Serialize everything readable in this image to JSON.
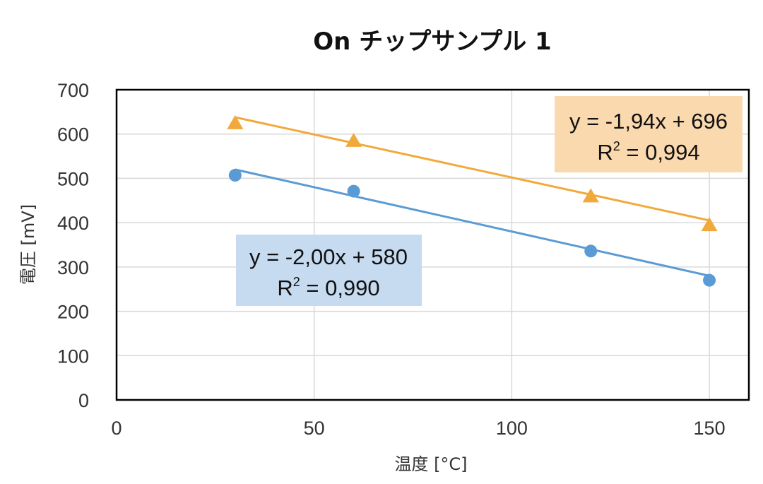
{
  "chart_data": {
    "type": "scatter",
    "title": "On チップサンプル 1",
    "xlabel": "温度 [°C]",
    "ylabel": "電圧 [mV]",
    "xlim": [
      0,
      160
    ],
    "ylim": [
      0,
      700
    ],
    "xticks": [
      "0",
      "50",
      "100",
      "150"
    ],
    "yticks": [
      "0",
      "100",
      "200",
      "300",
      "400",
      "500",
      "600",
      "700"
    ],
    "grid": true,
    "series": [
      {
        "marker": "triangle",
        "color": "#F2A93B",
        "x": [
          30,
          60,
          120,
          150
        ],
        "y": [
          625,
          585,
          460,
          395
        ],
        "trendline": {
          "slope": -1.94,
          "intercept": 696,
          "x_range": [
            30,
            150
          ]
        },
        "equation": "y = -1,94x + 696",
        "r2_prefix": "R",
        "r2_exp": "2",
        "r2_value": " = 0,994",
        "box_color": "#FAD9AE"
      },
      {
        "marker": "circle",
        "color": "#5B9BD5",
        "x": [
          30,
          60,
          120,
          150
        ],
        "y": [
          507,
          471,
          336,
          270
        ],
        "trendline": {
          "slope": -2.0,
          "intercept": 580,
          "x_range": [
            30,
            150
          ]
        },
        "equation": "y = -2,00x + 580",
        "r2_prefix": "R",
        "r2_exp": "2",
        "r2_value": " = 0,990",
        "box_color": "#C6DAF0"
      }
    ]
  }
}
